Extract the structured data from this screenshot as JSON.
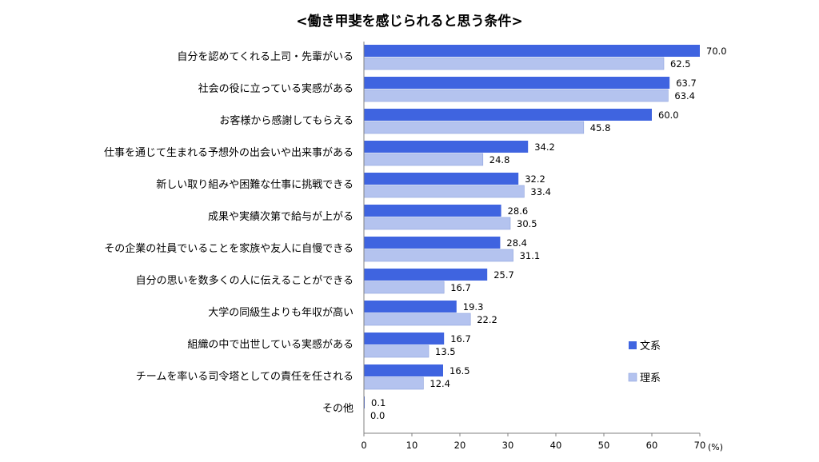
{
  "chart_data": {
    "type": "bar",
    "orientation": "horizontal",
    "title": "<働き甲斐を感じられると思う条件>",
    "unit_label": "(%)",
    "categories": [
      "自分を認めてくれる上司・先輩がいる",
      "社会の役に立っている実感がある",
      "お客様から感謝してもらえる",
      "仕事を通じて生まれる予想外の出会いや出来事がある",
      "新しい取り組みや困難な仕事に挑戦できる",
      "成果や実績次第で給与が上がる",
      "その企業の社員でいることを家族や友人に自慢できる",
      "自分の思いを数多くの人に伝えることができる",
      "大学の同級生よりも年収が高い",
      "組織の中で出世している実感がある",
      "チームを率いる司令塔としての責任を任される",
      "その他"
    ],
    "series": [
      {
        "name": "文系",
        "color": "#3f64e0",
        "values": [
          70.0,
          63.7,
          60.0,
          34.2,
          32.2,
          28.6,
          28.4,
          25.7,
          19.3,
          16.7,
          16.5,
          0.1
        ],
        "labels": [
          "70.0",
          "63.7",
          "60.0",
          "34.2",
          "32.2",
          "28.6",
          "28.4",
          "25.7",
          "19.3",
          "16.7",
          "16.5",
          "0.1"
        ]
      },
      {
        "name": "理系",
        "color": "#b4c3ef",
        "values": [
          62.5,
          63.4,
          45.8,
          24.8,
          33.4,
          30.5,
          31.1,
          16.7,
          22.2,
          13.5,
          12.4,
          0.0
        ],
        "labels": [
          "62.5",
          "63.4",
          "45.8",
          "24.8",
          "33.4",
          "30.5",
          "31.1",
          "16.7",
          "22.2",
          "13.5",
          "12.4",
          "0.0"
        ]
      }
    ],
    "xlim": [
      0,
      70
    ],
    "xticks": [
      "0",
      "10",
      "20",
      "30",
      "40",
      "50",
      "60",
      "70"
    ],
    "legend_position": "bottom-right",
    "grid": false
  }
}
